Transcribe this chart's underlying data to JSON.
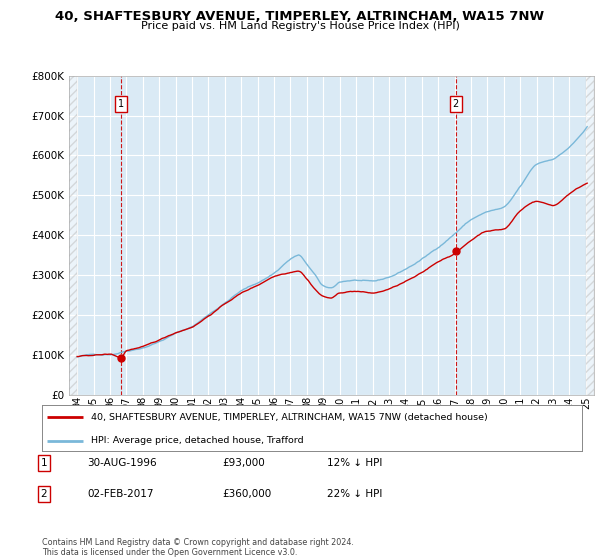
{
  "title": "40, SHAFTESBURY AVENUE, TIMPERLEY, ALTRINCHAM, WA15 7NW",
  "subtitle": "Price paid vs. HM Land Registry's House Price Index (HPI)",
  "hpi_color": "#7ab8d9",
  "price_color": "#cc0000",
  "dot_color": "#cc0000",
  "dashed_line_color": "#cc0000",
  "sale1_year": 1996.67,
  "sale1_price": 93000,
  "sale2_year": 2017.08,
  "sale2_price": 360000,
  "xlim_start": 1993.5,
  "xlim_end": 2025.5,
  "ylim_min": 0,
  "ylim_max": 800000,
  "yticks": [
    0,
    100000,
    200000,
    300000,
    400000,
    500000,
    600000,
    700000,
    800000
  ],
  "ytick_labels": [
    "£0",
    "£100K",
    "£200K",
    "£300K",
    "£400K",
    "£500K",
    "£600K",
    "£700K",
    "£800K"
  ],
  "xtick_years": [
    1994,
    1995,
    1996,
    1997,
    1998,
    1999,
    2000,
    2001,
    2002,
    2003,
    2004,
    2005,
    2006,
    2007,
    2008,
    2009,
    2010,
    2011,
    2012,
    2013,
    2014,
    2015,
    2016,
    2017,
    2018,
    2019,
    2020,
    2021,
    2022,
    2023,
    2024,
    2025
  ],
  "xtick_labels": [
    "94",
    "95",
    "96",
    "97",
    "98",
    "99",
    "00",
    "01",
    "02",
    "03",
    "04",
    "05",
    "06",
    "07",
    "08",
    "09",
    "10",
    "11",
    "12",
    "13",
    "14",
    "15",
    "16",
    "17",
    "18",
    "19",
    "20",
    "21",
    "22",
    "23",
    "24",
    "25"
  ],
  "legend_label_red": "40, SHAFTESBURY AVENUE, TIMPERLEY, ALTRINCHAM, WA15 7NW (detached house)",
  "legend_label_blue": "HPI: Average price, detached house, Trafford",
  "transaction1_num": "1",
  "transaction1_date": "30-AUG-1996",
  "transaction1_price": "£93,000",
  "transaction1_hpi": "12% ↓ HPI",
  "transaction2_num": "2",
  "transaction2_date": "02-FEB-2017",
  "transaction2_price": "£360,000",
  "transaction2_hpi": "22% ↓ HPI",
  "copyright": "Contains HM Land Registry data © Crown copyright and database right 2024.\nThis data is licensed under the Open Government Licence v3.0.",
  "bg_color": "#ffffff",
  "plot_bg_color": "#daeaf5"
}
